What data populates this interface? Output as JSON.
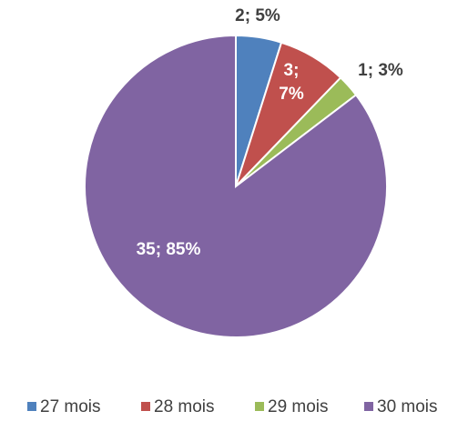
{
  "chart_data": {
    "type": "pie",
    "categories": [
      "27 mois",
      "28 mois",
      "29 mois",
      "30 mois"
    ],
    "values": [
      2,
      3,
      1,
      35
    ],
    "value_labels": [
      "2; 5%",
      "3; 7%",
      "1; 3%",
      "35; 85%"
    ],
    "colors": [
      "#4f81bd",
      "#c0504d",
      "#9bbb59",
      "#8064a2"
    ],
    "legend": "bottom"
  }
}
